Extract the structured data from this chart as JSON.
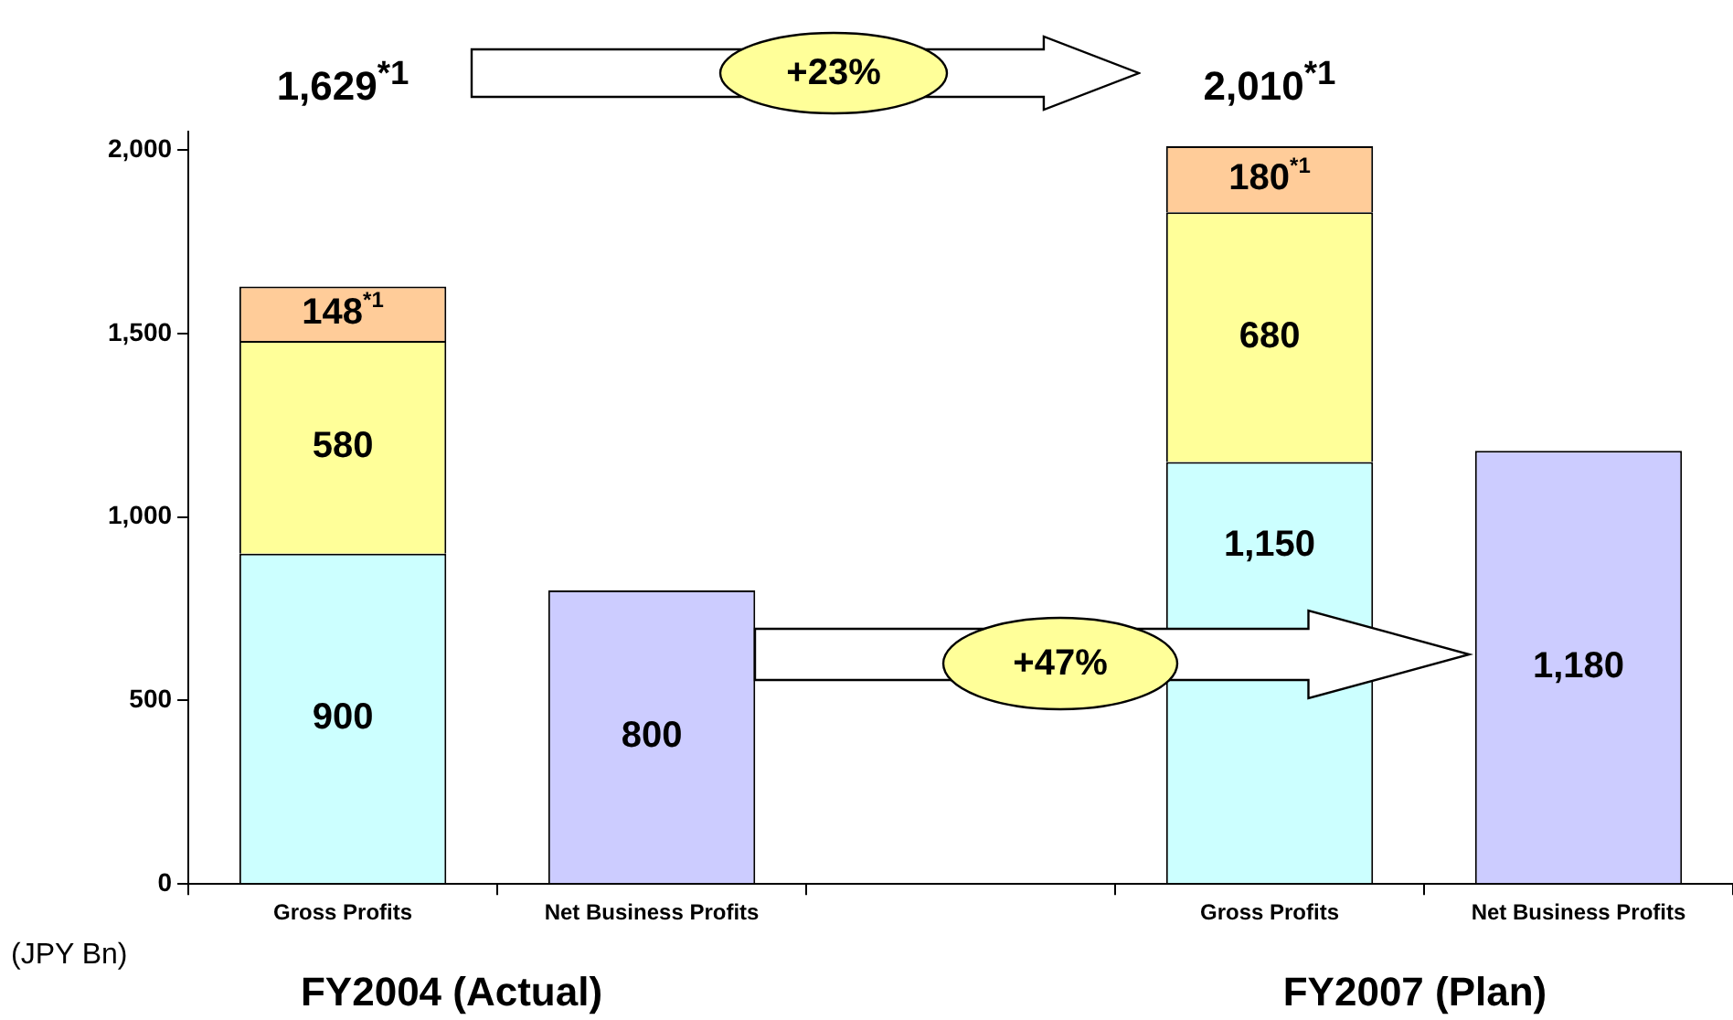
{
  "chart_data": {
    "type": "bar",
    "stacked": true,
    "ylabel": "(JPY Bn)",
    "categories": [
      "Gross Profits",
      "Net Business Profits",
      null,
      "Gross Profits",
      "Net Business Profits"
    ],
    "series": [
      {
        "color": "#ccffff",
        "values": [
          900,
          null,
          null,
          1150,
          null
        ],
        "value_labels": [
          "900",
          null,
          null,
          "1,150",
          null
        ]
      },
      {
        "color": "#ffff99",
        "values": [
          580,
          null,
          null,
          680,
          null
        ],
        "value_labels": [
          "580",
          null,
          null,
          "680",
          null
        ]
      },
      {
        "color": "#ffcc99",
        "values": [
          148,
          null,
          null,
          180,
          null
        ],
        "value_labels": [
          "148$^{*1}$",
          null,
          null,
          "180$^{*1}$",
          null
        ]
      },
      {
        "color": "#ccccff",
        "values": [
          null,
          800,
          null,
          null,
          1180
        ],
        "value_labels": [
          null,
          "800",
          null,
          null,
          "1,180"
        ]
      }
    ],
    "annotations": [
      "1,629$^{*1}$",
      "2,010$^{*1}$",
      "+23%",
      "+47%",
      "FY2004 (Actual)",
      "FY2007 (Plan)"
    ],
    "ylim": [
      0,
      2050
    ],
    "yticks": [
      0,
      {
        "value": 500,
        "label": "500"
      },
      {
        "value": 1000,
        "label": "1,000"
      },
      {
        "value": 1500,
        "label": "1,500"
      },
      {
        "value": 2000,
        "label": "2,000"
      }
    ],
    "grid": false,
    "legend": false
  }
}
